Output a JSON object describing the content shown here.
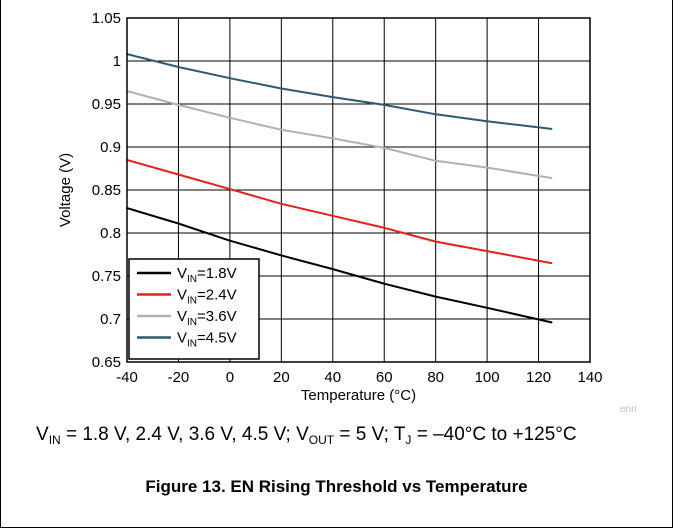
{
  "chart_data": {
    "type": "line",
    "title": "",
    "xlabel": "Temperature (°C)",
    "ylabel": "Voltage (V)",
    "xlim": [
      -40,
      140
    ],
    "ylim": [
      0.65,
      1.05
    ],
    "xticks": [
      -40,
      -20,
      0,
      20,
      40,
      60,
      80,
      100,
      120,
      140
    ],
    "yticks": [
      0.65,
      0.7,
      0.75,
      0.8,
      0.85,
      0.9,
      0.95,
      1,
      1.05
    ],
    "xtick_labels": [
      "-40",
      "-20",
      "0",
      "20",
      "40",
      "60",
      "80",
      "100",
      "120",
      "140"
    ],
    "ytick_labels": [
      "0.65",
      "0.7",
      "0.75",
      "0.8",
      "0.85",
      "0.9",
      "0.95",
      "1",
      "1.05"
    ],
    "grid": true,
    "legend_position": "bottom-left",
    "series": [
      {
        "label_main": "V",
        "label_sub": "IN",
        "label_rest": "=1.8V",
        "color": "#000000",
        "x": [
          -40,
          -20,
          0,
          20,
          40,
          60,
          80,
          100,
          125
        ],
        "y": [
          0.829,
          0.811,
          0.791,
          0.774,
          0.758,
          0.741,
          0.726,
          0.713,
          0.696
        ]
      },
      {
        "label_main": "V",
        "label_sub": "IN",
        "label_rest": "=2.4V",
        "color": "#e8201d",
        "x": [
          -40,
          -20,
          0,
          20,
          40,
          60,
          80,
          100,
          125
        ],
        "y": [
          0.885,
          0.868,
          0.851,
          0.834,
          0.82,
          0.806,
          0.79,
          0.779,
          0.765
        ]
      },
      {
        "label_main": "V",
        "label_sub": "IN",
        "label_rest": "=3.6V",
        "color": "#b0b0b0",
        "x": [
          -40,
          -20,
          0,
          20,
          40,
          60,
          80,
          100,
          125
        ],
        "y": [
          0.965,
          0.949,
          0.934,
          0.92,
          0.91,
          0.899,
          0.884,
          0.876,
          0.864
        ]
      },
      {
        "label_main": "V",
        "label_sub": "IN",
        "label_rest": "=4.5V",
        "color": "#2c5a70",
        "x": [
          -40,
          -20,
          0,
          20,
          40,
          60,
          80,
          100,
          125
        ],
        "y": [
          1.008,
          0.993,
          0.98,
          0.968,
          0.958,
          0.949,
          0.938,
          0.93,
          0.921
        ]
      }
    ]
  },
  "conditions": {
    "v1": "V",
    "v1_sub": "IN",
    "v1_text": " = 1.8 V, 2.4 V, 3.6 V, 4.5 V; ",
    "v2": "V",
    "v2_sub": "OUT",
    "v2_text": " = 5 V; ",
    "v3": "T",
    "v3_sub": "J",
    "v3_text": " = –40°C to +125°C"
  },
  "watermark": "enri",
  "figure_caption": "Figure 13. EN Rising Threshold vs Temperature"
}
